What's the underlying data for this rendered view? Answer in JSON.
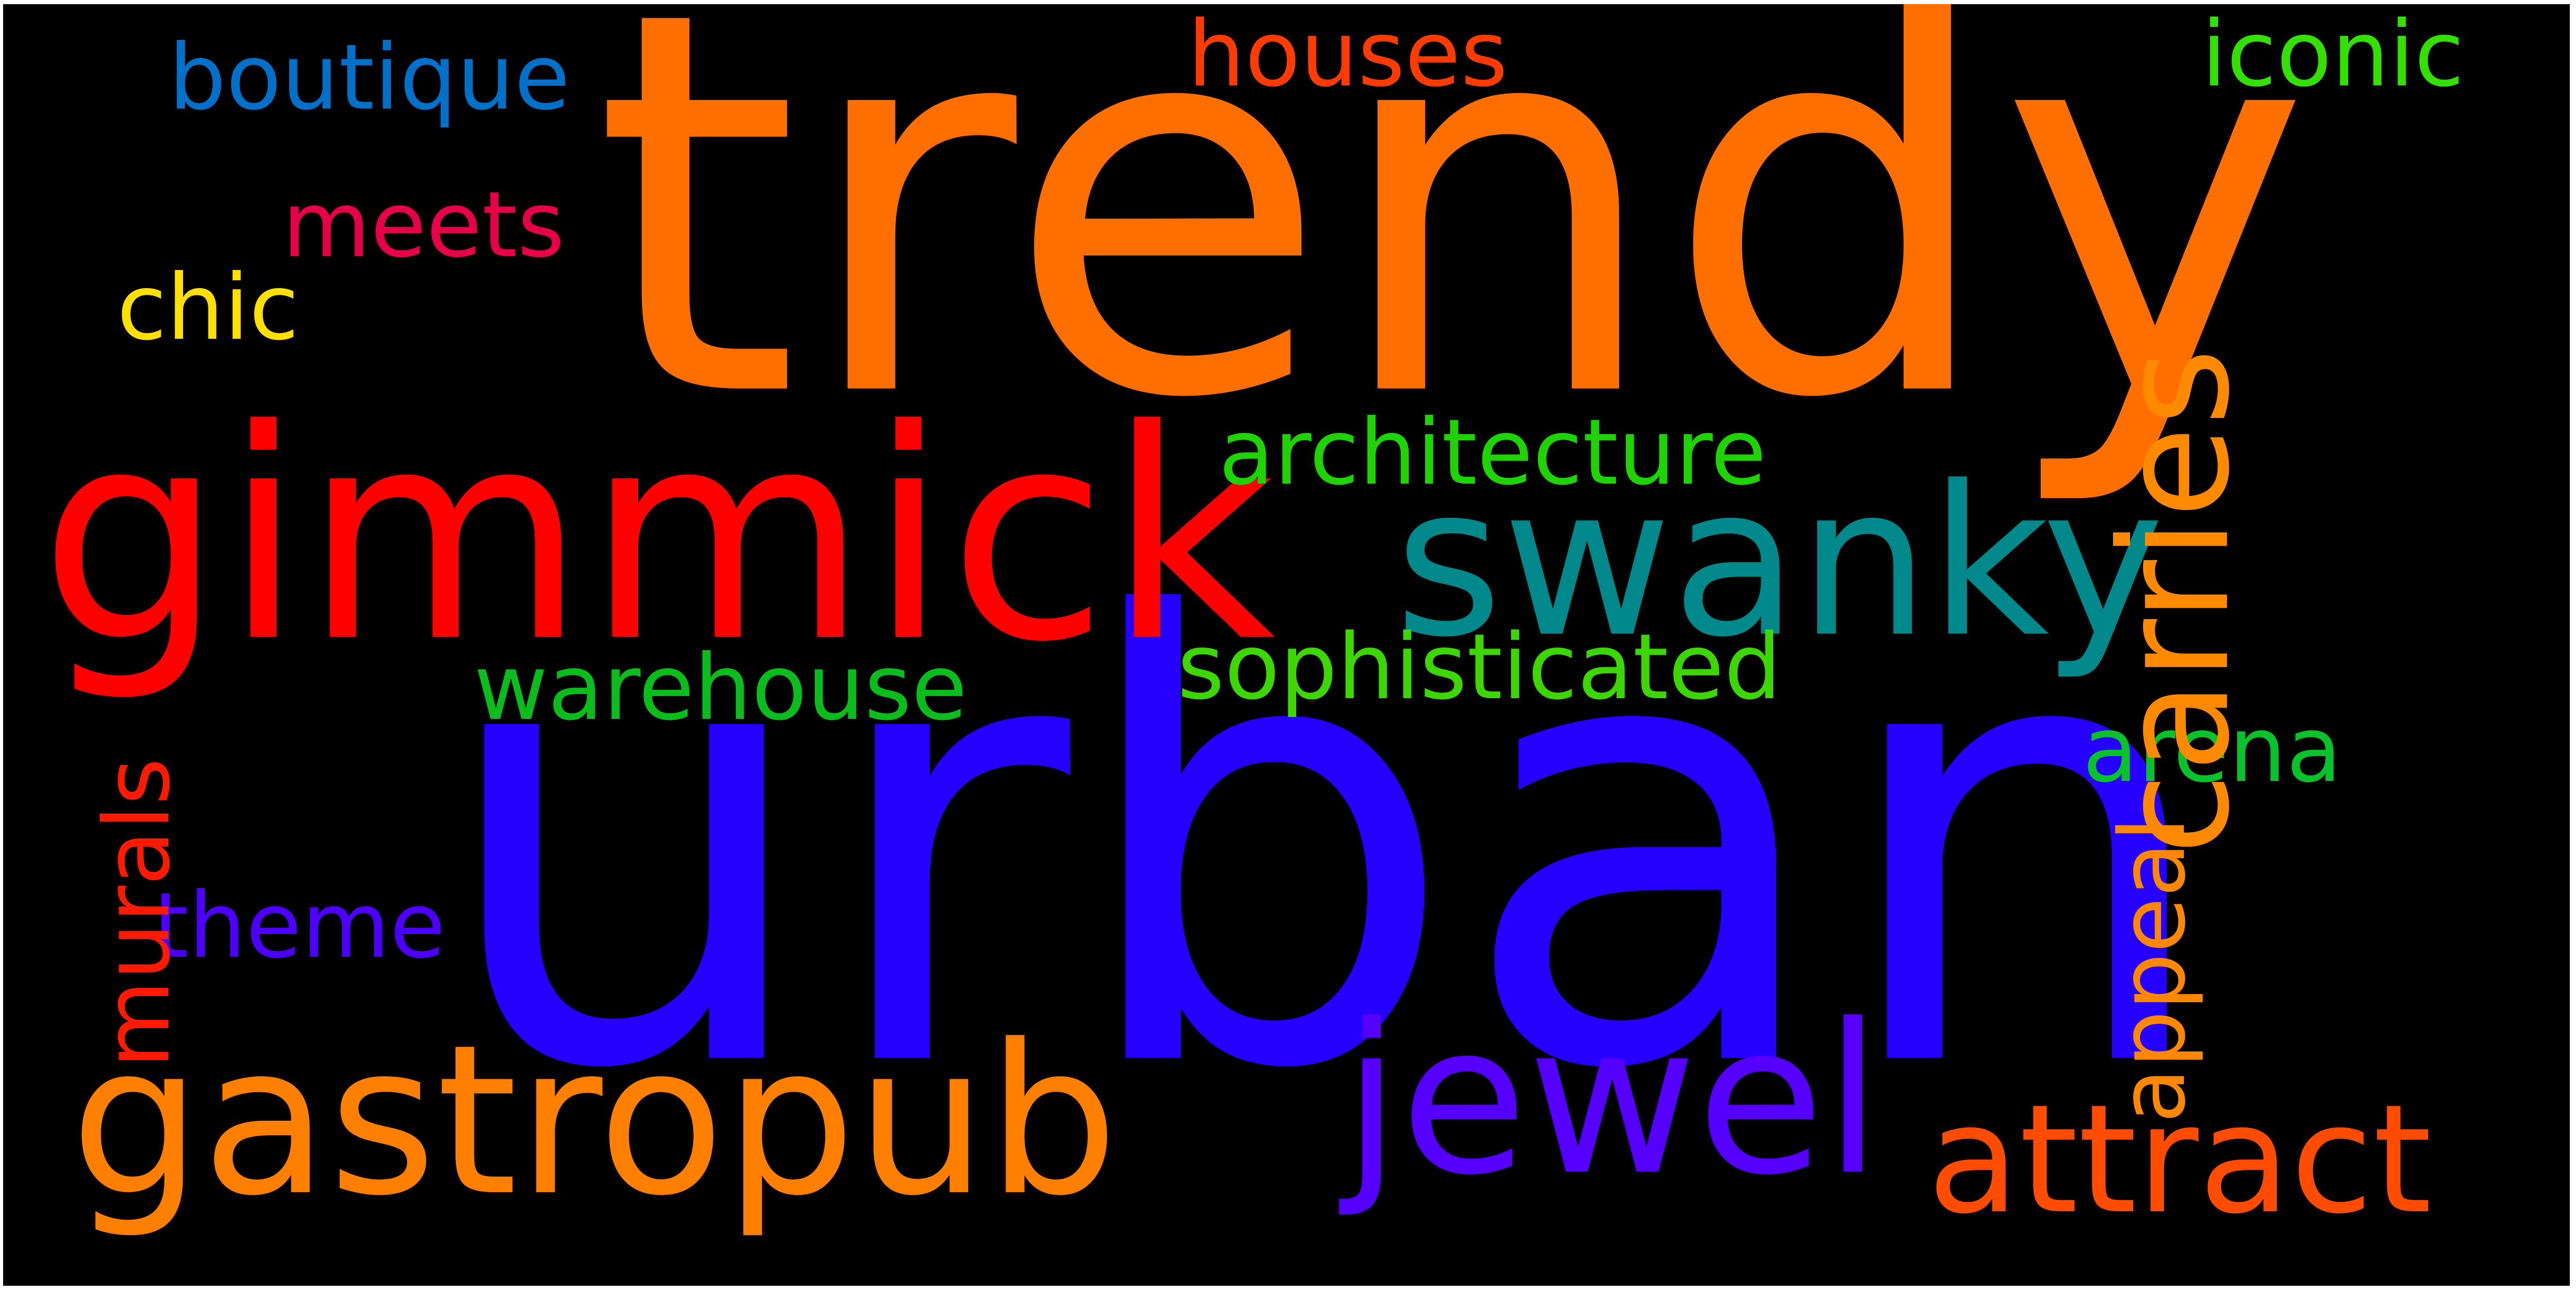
{
  "words": {
    "trendy": {
      "text": "trendy",
      "color": "#ff6f00"
    },
    "urban": {
      "text": "urban",
      "color": "#2600ff"
    },
    "gimmick": {
      "text": "gimmick",
      "color": "#ff0000"
    },
    "swanky": {
      "text": "swanky",
      "color": "#00888a"
    },
    "carries": {
      "text": "carries",
      "color": "#ff8a00"
    },
    "gastropub": {
      "text": "gastropub",
      "color": "#ff7f00"
    },
    "jewel": {
      "text": "jewel",
      "color": "#5500ff"
    },
    "attract": {
      "text": "attract",
      "color": "#ff4c00"
    },
    "architecture": {
      "text": "architecture",
      "color": "#1fd300"
    },
    "sophisticated": {
      "text": "sophisticated",
      "color": "#3ed600"
    },
    "warehouse": {
      "text": "warehouse",
      "color": "#0bbd1c"
    },
    "arena": {
      "text": "arena",
      "color": "#07c22b"
    },
    "appeal": {
      "text": "appeal",
      "color": "#ff8800"
    },
    "murals": {
      "text": "murals",
      "color": "#ff1a00"
    },
    "theme": {
      "text": "theme",
      "color": "#4c00ff"
    },
    "boutique": {
      "text": "boutique",
      "color": "#0070c8"
    },
    "houses": {
      "text": "houses",
      "color": "#ff3b00"
    },
    "iconic": {
      "text": "iconic",
      "color": "#34e000"
    },
    "meets": {
      "text": "meets",
      "color": "#e60047"
    },
    "chic": {
      "text": "chic",
      "color": "#ffe000"
    }
  }
}
